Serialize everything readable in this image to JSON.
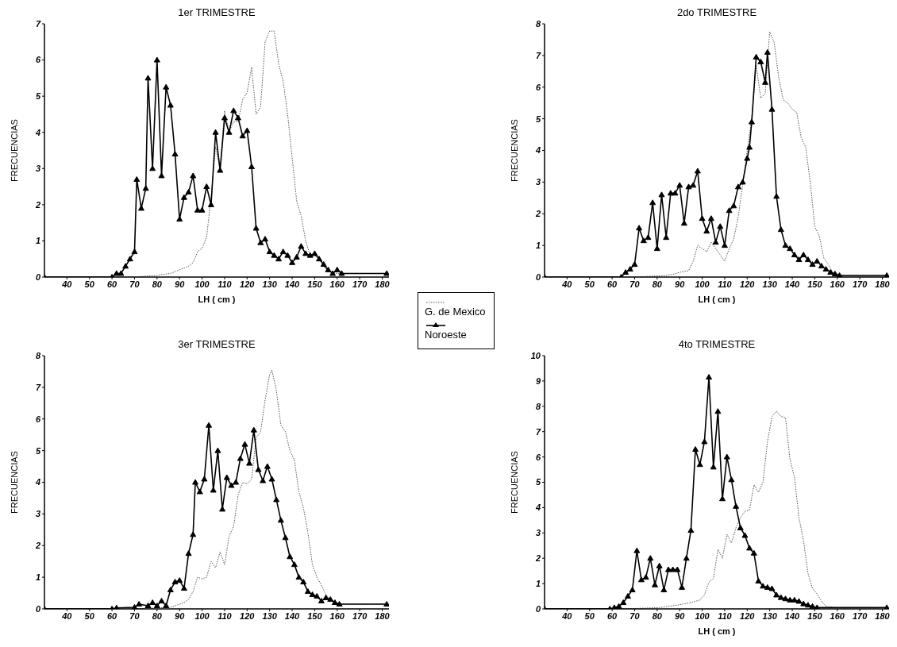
{
  "chart_data": [
    {
      "type": "line",
      "title": "1er TRIMESTRE",
      "xlabel": "LH ( cm )",
      "ylabel": "FRECUENCIAS",
      "xlim": [
        30,
        183
      ],
      "xticks": [
        40,
        50,
        60,
        70,
        80,
        90,
        100,
        110,
        120,
        130,
        140,
        150,
        160,
        170,
        180
      ],
      "ylim": [
        0,
        7
      ],
      "yticks": [
        0,
        1,
        2,
        3,
        4,
        5,
        6,
        7
      ],
      "grid": false,
      "legend": "right",
      "series": [
        {
          "name": "G. de Mexico",
          "color": "#555555",
          "marker": "none",
          "line_style": "dotted",
          "x": [
            30,
            70,
            80,
            86,
            90,
            94,
            96,
            98,
            100,
            102,
            104,
            106,
            108,
            110,
            112,
            114,
            116,
            118,
            120,
            122,
            124,
            126,
            128,
            130,
            132,
            134,
            136,
            138,
            140,
            142,
            144,
            146,
            148,
            150,
            152,
            154,
            156,
            160,
            182
          ],
          "values": [
            0,
            0,
            0.05,
            0.1,
            0.2,
            0.3,
            0.4,
            0.7,
            0.8,
            1.1,
            2.2,
            3.6,
            3.0,
            4.6,
            4.0,
            4.3,
            4.3,
            4.9,
            5.1,
            5.8,
            4.5,
            4.7,
            6.5,
            6.8,
            6.8,
            5.9,
            5.4,
            4.5,
            3.3,
            2.1,
            1.7,
            1.0,
            0.6,
            0.6,
            0.5,
            0.3,
            0.15,
            0.1,
            0.1
          ]
        },
        {
          "name": "Noroeste",
          "color": "#000000",
          "marker": "triangle",
          "line_style": "solid",
          "x": [
            30,
            60,
            62,
            64,
            66,
            68,
            70,
            71,
            73,
            75,
            76,
            78,
            80,
            82,
            84,
            86,
            88,
            90,
            92,
            94,
            96,
            98,
            100,
            102,
            104,
            106,
            108,
            110,
            112,
            114,
            116,
            118,
            120,
            122,
            124,
            126,
            128,
            130,
            132,
            134,
            136,
            138,
            140,
            142,
            144,
            146,
            148,
            150,
            152,
            154,
            156,
            158,
            160,
            162,
            182
          ],
          "values": [
            0,
            0,
            0.1,
            0.1,
            0.3,
            0.5,
            0.7,
            2.7,
            1.9,
            2.45,
            5.5,
            3.0,
            6.0,
            2.8,
            5.25,
            4.75,
            3.4,
            1.6,
            2.2,
            2.35,
            2.8,
            1.85,
            1.85,
            2.5,
            2.0,
            4.0,
            2.95,
            4.4,
            4.0,
            4.6,
            4.4,
            3.9,
            4.05,
            3.05,
            1.35,
            0.95,
            1.05,
            0.7,
            0.6,
            0.5,
            0.7,
            0.6,
            0.4,
            0.55,
            0.85,
            0.65,
            0.6,
            0.65,
            0.5,
            0.35,
            0.2,
            0.1,
            0.2,
            0.1,
            0.1
          ]
        }
      ]
    },
    {
      "type": "line",
      "title": "2do TRIMESTRE",
      "xlabel": "LH ( cm )",
      "ylabel": "FRECUENCIAS",
      "xlim": [
        30,
        183
      ],
      "xticks": [
        40,
        50,
        60,
        70,
        80,
        90,
        100,
        110,
        120,
        130,
        140,
        150,
        160,
        170,
        180
      ],
      "ylim": [
        0,
        8
      ],
      "yticks": [
        0,
        1,
        2,
        3,
        4,
        5,
        6,
        7,
        8
      ],
      "grid": false,
      "series": [
        {
          "color": "#555555",
          "marker": "none",
          "line_style": "dotted",
          "x": [
            30,
            70,
            84,
            88,
            90,
            94,
            96,
            98,
            100,
            102,
            104,
            106,
            108,
            110,
            112,
            114,
            116,
            118,
            120,
            122,
            124,
            126,
            128,
            130,
            132,
            134,
            136,
            138,
            140,
            142,
            144,
            146,
            148,
            150,
            152,
            154,
            156,
            158,
            162,
            182
          ],
          "values": [
            0,
            0,
            0.05,
            0.1,
            0.15,
            0.2,
            0.5,
            1.0,
            0.9,
            0.8,
            1.1,
            0.9,
            0.7,
            0.5,
            0.9,
            1.2,
            1.9,
            2.9,
            4.0,
            5.0,
            6.7,
            5.65,
            5.8,
            7.75,
            7.4,
            6.3,
            5.6,
            5.5,
            5.3,
            5.2,
            4.4,
            4.1,
            3.0,
            1.6,
            1.3,
            0.6,
            0.4,
            0.15,
            0.05,
            0.05
          ]
        },
        {
          "color": "#000000",
          "marker": "triangle",
          "line_style": "solid",
          "x": [
            30,
            64,
            66,
            68,
            70,
            72,
            74,
            76,
            78,
            80,
            82,
            84,
            86,
            88,
            90,
            92,
            94,
            96,
            98,
            100,
            102,
            104,
            106,
            108,
            110,
            112,
            114,
            116,
            118,
            120,
            121,
            122,
            124,
            126,
            128,
            129,
            131,
            133,
            135,
            137,
            139,
            141,
            143,
            145,
            147,
            149,
            151,
            153,
            155,
            157,
            159,
            161,
            182
          ],
          "values": [
            0,
            0,
            0.15,
            0.25,
            0.4,
            1.55,
            1.15,
            1.25,
            2.35,
            0.9,
            2.6,
            1.25,
            2.65,
            2.65,
            2.9,
            1.7,
            2.85,
            2.9,
            3.35,
            1.85,
            1.45,
            1.85,
            1.1,
            1.6,
            1.0,
            2.1,
            2.25,
            2.85,
            3.0,
            3.75,
            4.1,
            4.9,
            6.95,
            6.8,
            6.15,
            7.1,
            5.3,
            2.55,
            1.5,
            1.0,
            0.9,
            0.7,
            0.55,
            0.7,
            0.55,
            0.4,
            0.5,
            0.35,
            0.25,
            0.15,
            0.1,
            0.05,
            0.05
          ]
        }
      ]
    },
    {
      "type": "line",
      "title": "3er TRIMESTRE",
      "ylabel": "FRECUENCIAS",
      "xlim": [
        30,
        183
      ],
      "xticks": [
        40,
        50,
        60,
        70,
        80,
        90,
        100,
        110,
        120,
        130,
        140,
        150,
        160,
        170,
        180
      ],
      "ylim": [
        0,
        8
      ],
      "yticks": [
        0,
        1,
        2,
        3,
        4,
        5,
        6,
        7,
        8
      ],
      "grid": false,
      "series": [
        {
          "color": "#555555",
          "marker": "none",
          "line_style": "dotted",
          "x": [
            30,
            70,
            86,
            90,
            92,
            94,
            96,
            98,
            100,
            102,
            104,
            106,
            108,
            110,
            112,
            114,
            116,
            118,
            120,
            122,
            124,
            126,
            128,
            130,
            131,
            133,
            135,
            137,
            139,
            141,
            143,
            145,
            147,
            149,
            151,
            153,
            155,
            157,
            159,
            161,
            182
          ],
          "values": [
            0,
            0,
            0.05,
            0.15,
            0.2,
            0.3,
            0.55,
            1.0,
            0.95,
            1.0,
            1.5,
            1.3,
            1.8,
            1.4,
            2.3,
            2.6,
            3.6,
            4.0,
            3.95,
            4.1,
            5.4,
            5.6,
            6.6,
            7.4,
            7.55,
            6.9,
            5.8,
            5.6,
            5.0,
            4.7,
            3.7,
            3.2,
            2.4,
            1.4,
            1.0,
            0.75,
            0.45,
            0.3,
            0.2,
            0.15,
            0.15
          ]
        },
        {
          "color": "#000000",
          "marker": "triangle",
          "line_style": "solid",
          "x": [
            30,
            60,
            62,
            70,
            72,
            76,
            78,
            80,
            82,
            84,
            86,
            88,
            90,
            92,
            94,
            96,
            97,
            99,
            101,
            103,
            105,
            107,
            109,
            111,
            113,
            115,
            117,
            119,
            121,
            123,
            125,
            127,
            129,
            131,
            133,
            135,
            137,
            139,
            141,
            143,
            145,
            147,
            149,
            151,
            153,
            155,
            157,
            159,
            161,
            182
          ],
          "values": [
            0,
            0,
            0.03,
            0.05,
            0.15,
            0.1,
            0.2,
            0.1,
            0.25,
            0.1,
            0.6,
            0.85,
            0.9,
            0.65,
            1.75,
            2.35,
            4.0,
            3.7,
            4.1,
            5.8,
            3.75,
            5.0,
            3.15,
            4.15,
            3.9,
            4.0,
            4.75,
            5.2,
            4.6,
            5.65,
            4.4,
            4.05,
            4.5,
            4.1,
            3.45,
            2.8,
            2.25,
            1.65,
            1.4,
            1.0,
            0.85,
            0.55,
            0.45,
            0.4,
            0.25,
            0.35,
            0.3,
            0.2,
            0.15,
            0.15
          ]
        }
      ]
    },
    {
      "type": "line",
      "title": "4to TRIMESTRE",
      "xlabel": "LH ( cm )",
      "ylabel": "FRECUENCIAS",
      "xlim": [
        30,
        183
      ],
      "xticks": [
        40,
        50,
        60,
        70,
        80,
        90,
        100,
        110,
        120,
        130,
        140,
        150,
        160,
        170,
        180
      ],
      "ylim": [
        0,
        10
      ],
      "yticks": [
        0,
        1,
        2,
        3,
        4,
        5,
        6,
        7,
        8,
        9,
        10
      ],
      "grid": false,
      "series": [
        {
          "color": "#555555",
          "marker": "none",
          "line_style": "dotted",
          "x": [
            30,
            61,
            71,
            81,
            89,
            95,
            99,
            101,
            103,
            105,
            107,
            109,
            111,
            113,
            115,
            117,
            119,
            121,
            123,
            125,
            127,
            129,
            131,
            133,
            135,
            137,
            139,
            141,
            143,
            145,
            147,
            149,
            151,
            153,
            155,
            160,
            182
          ],
          "values": [
            0,
            0,
            0.02,
            0.05,
            0.15,
            0.25,
            0.35,
            0.55,
            1.05,
            1.2,
            2.35,
            2.0,
            2.95,
            2.6,
            3.2,
            3.6,
            3.85,
            3.9,
            4.9,
            4.6,
            5.0,
            6.6,
            7.6,
            7.8,
            7.6,
            7.55,
            5.9,
            5.2,
            3.6,
            2.7,
            1.4,
            0.8,
            0.6,
            0.3,
            0.1,
            0.05,
            0.05
          ]
        },
        {
          "color": "#000000",
          "marker": "triangle",
          "line_style": "solid",
          "x": [
            30,
            59,
            61,
            63,
            65,
            67,
            69,
            71,
            73,
            75,
            77,
            79,
            81,
            83,
            85,
            87,
            89,
            91,
            93,
            95,
            97,
            99,
            101,
            103,
            105,
            107,
            109,
            111,
            113,
            115,
            117,
            119,
            121,
            123,
            125,
            127,
            129,
            131,
            133,
            135,
            137,
            139,
            141,
            143,
            145,
            147,
            149,
            151,
            182
          ],
          "values": [
            0,
            0,
            0.05,
            0.1,
            0.25,
            0.5,
            0.75,
            2.3,
            1.15,
            1.25,
            2.0,
            0.95,
            1.7,
            0.75,
            1.55,
            1.55,
            1.55,
            0.85,
            2.0,
            3.1,
            6.3,
            5.7,
            6.6,
            9.15,
            5.6,
            7.8,
            4.35,
            6.0,
            5.1,
            4.05,
            3.2,
            2.9,
            2.4,
            2.2,
            1.1,
            0.9,
            0.85,
            0.8,
            0.55,
            0.45,
            0.4,
            0.35,
            0.35,
            0.3,
            0.2,
            0.15,
            0.1,
            0.05,
            0.05
          ]
        }
      ]
    }
  ]
}
